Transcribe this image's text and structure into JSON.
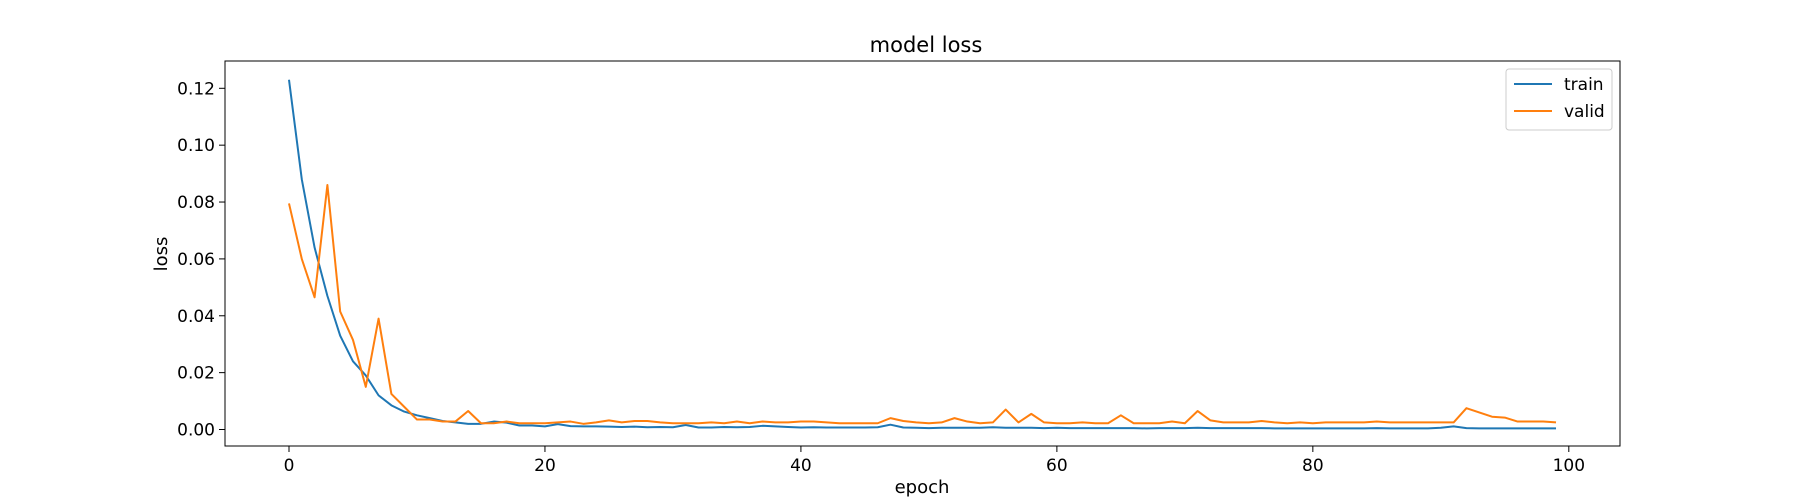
{
  "chart_data": {
    "type": "line",
    "title": "model loss",
    "xlabel": "epoch",
    "ylabel": "loss",
    "xlim": [
      -5,
      104
    ],
    "ylim": [
      -0.0058,
      0.1296
    ],
    "xticks": [
      0,
      20,
      40,
      60,
      80,
      100
    ],
    "xtick_labels": [
      "0",
      "20",
      "40",
      "60",
      "80",
      "100"
    ],
    "yticks": [
      0.0,
      0.02,
      0.04,
      0.06,
      0.08,
      0.1,
      0.12
    ],
    "ytick_labels": [
      "0.00",
      "0.02",
      "0.04",
      "0.06",
      "0.08",
      "0.10",
      "0.12"
    ],
    "grid": false,
    "legend_position": "top-right",
    "x": [
      0,
      1,
      2,
      3,
      4,
      5,
      6,
      7,
      8,
      9,
      10,
      11,
      12,
      13,
      14,
      15,
      16,
      17,
      18,
      19,
      20,
      21,
      22,
      23,
      24,
      25,
      26,
      27,
      28,
      29,
      30,
      31,
      32,
      33,
      34,
      35,
      36,
      37,
      38,
      39,
      40,
      41,
      42,
      43,
      44,
      45,
      46,
      47,
      48,
      49,
      50,
      51,
      52,
      53,
      54,
      55,
      56,
      57,
      58,
      59,
      60,
      61,
      62,
      63,
      64,
      65,
      66,
      67,
      68,
      69,
      70,
      71,
      72,
      73,
      74,
      75,
      76,
      77,
      78,
      79,
      80,
      81,
      82,
      83,
      84,
      85,
      86,
      87,
      88,
      89,
      90,
      91,
      92,
      93,
      94,
      95,
      96,
      97,
      98,
      99
    ],
    "series": [
      {
        "name": "train",
        "color": "#1f77b4",
        "values": [
          0.123,
          0.088,
          0.064,
          0.047,
          0.033,
          0.024,
          0.019,
          0.012,
          0.0085,
          0.0063,
          0.005,
          0.004,
          0.003,
          0.0025,
          0.002,
          0.002,
          0.0028,
          0.0024,
          0.0014,
          0.0014,
          0.0011,
          0.0019,
          0.0012,
          0.0011,
          0.0011,
          0.001,
          0.0009,
          0.001,
          0.0008,
          0.0009,
          0.0008,
          0.0016,
          0.0007,
          0.0007,
          0.0009,
          0.0008,
          0.0009,
          0.0013,
          0.0011,
          0.0009,
          0.0007,
          0.0008,
          0.0007,
          0.0007,
          0.0007,
          0.0007,
          0.0008,
          0.0017,
          0.0007,
          0.0006,
          0.0005,
          0.0006,
          0.0006,
          0.0006,
          0.0006,
          0.0008,
          0.0006,
          0.0006,
          0.0006,
          0.0005,
          0.0006,
          0.0005,
          0.0005,
          0.0005,
          0.0005,
          0.0005,
          0.0005,
          0.0004,
          0.0005,
          0.0005,
          0.0005,
          0.0006,
          0.0005,
          0.0005,
          0.0005,
          0.0005,
          0.0005,
          0.0004,
          0.0004,
          0.0004,
          0.0004,
          0.0004,
          0.0004,
          0.0004,
          0.0004,
          0.0005,
          0.0004,
          0.0004,
          0.0004,
          0.0004,
          0.0006,
          0.0011,
          0.0005,
          0.0004,
          0.0004,
          0.0004,
          0.0004,
          0.0004,
          0.0004,
          0.0004
        ]
      },
      {
        "name": "valid",
        "color": "#ff7f0e",
        "values": [
          0.0795,
          0.06,
          0.0465,
          0.086,
          0.0415,
          0.0315,
          0.015,
          0.039,
          0.0125,
          0.008,
          0.0035,
          0.0035,
          0.0028,
          0.0028,
          0.0065,
          0.0022,
          0.0022,
          0.0028,
          0.0022,
          0.0022,
          0.0022,
          0.0025,
          0.0028,
          0.002,
          0.0025,
          0.0032,
          0.0025,
          0.003,
          0.003,
          0.0025,
          0.0022,
          0.0022,
          0.0022,
          0.0025,
          0.0022,
          0.0028,
          0.0022,
          0.0028,
          0.0025,
          0.0025,
          0.0028,
          0.0028,
          0.0025,
          0.0022,
          0.0022,
          0.0022,
          0.0022,
          0.004,
          0.003,
          0.0025,
          0.0022,
          0.0025,
          0.004,
          0.0028,
          0.0022,
          0.0025,
          0.007,
          0.0025,
          0.0055,
          0.0025,
          0.0022,
          0.0022,
          0.0025,
          0.0022,
          0.0022,
          0.005,
          0.0022,
          0.0022,
          0.0022,
          0.0028,
          0.0022,
          0.0065,
          0.0032,
          0.0025,
          0.0025,
          0.0025,
          0.003,
          0.0025,
          0.0022,
          0.0025,
          0.0022,
          0.0025,
          0.0025,
          0.0025,
          0.0025,
          0.0028,
          0.0025,
          0.0025,
          0.0025,
          0.0025,
          0.0025,
          0.0025,
          0.0075,
          0.006,
          0.0045,
          0.0042,
          0.0028,
          0.0028,
          0.0028,
          0.0025
        ]
      }
    ]
  }
}
